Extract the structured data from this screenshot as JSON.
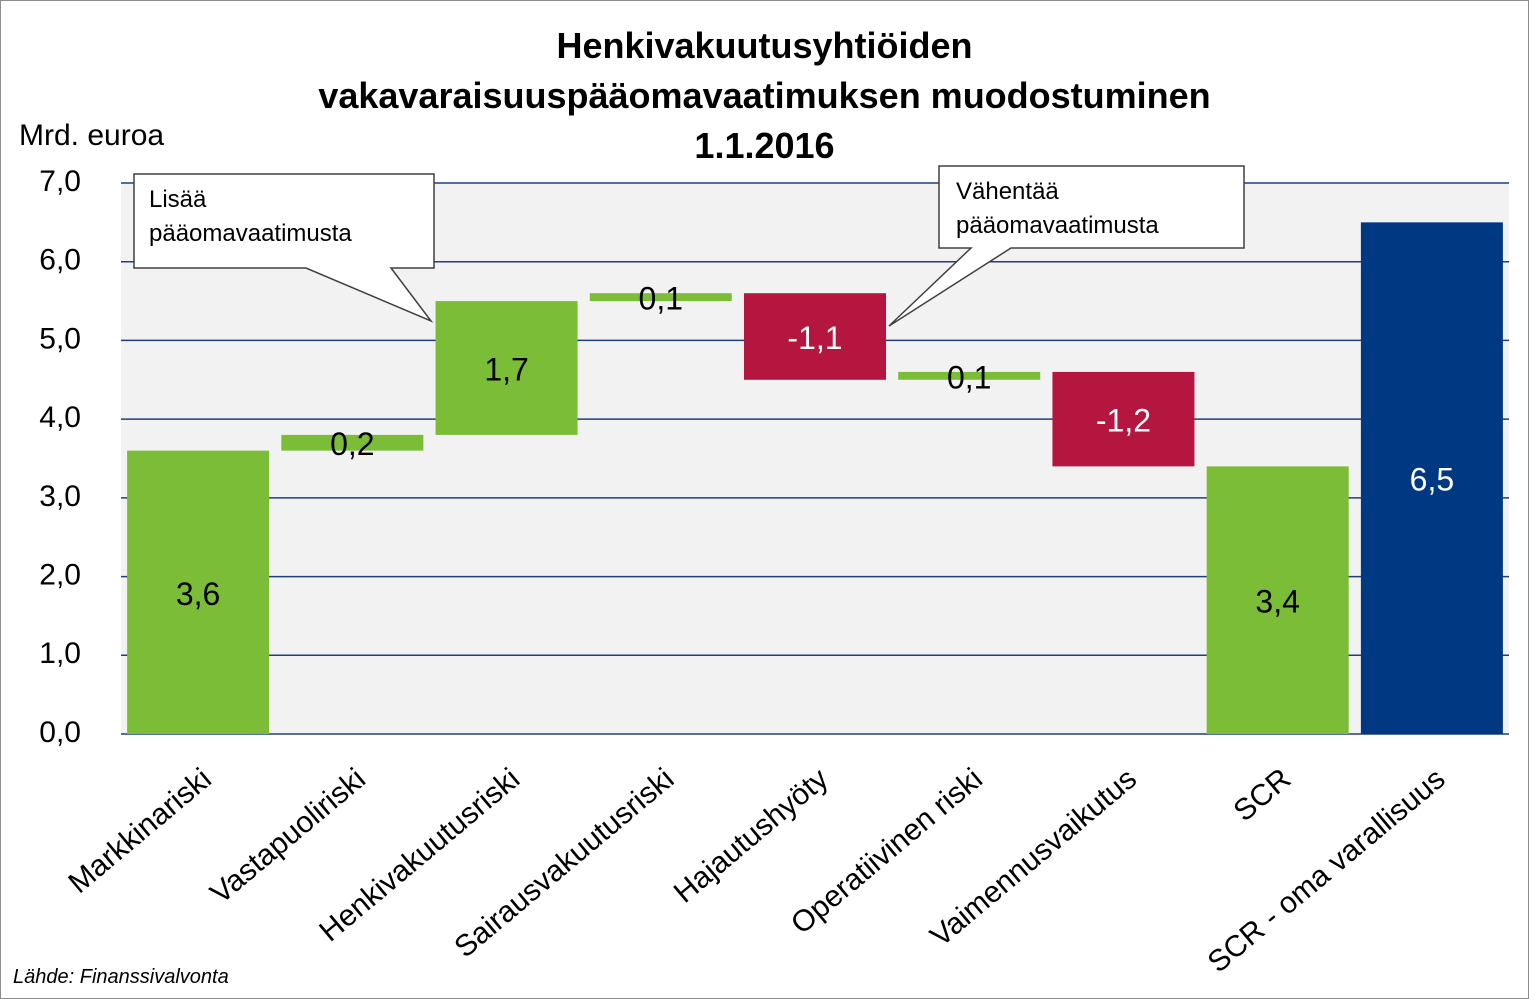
{
  "chart_data": {
    "type": "waterfall",
    "title": "Henkivakuutusyhtiöiden\nvakavaraisuuspääomavaatimuksen muodostuminen\n1.1.2016",
    "y_label": "Mrd. euroa",
    "categories": [
      "Markkinariski",
      "Vastapuoliriski",
      "Henkivakuutusriski",
      "Sairausvakuutusriski",
      "Hajautushyöty",
      "Operatiivinen riski",
      "Vaimennusvaikutus",
      "SCR",
      "SCR - oma varallisuus"
    ],
    "measures": [
      "relative",
      "relative",
      "relative",
      "relative",
      "relative",
      "relative",
      "relative",
      "total",
      "total"
    ],
    "values": [
      3.6,
      0.2,
      1.7,
      0.1,
      -1.1,
      0.1,
      -1.2,
      3.4,
      6.5
    ],
    "value_labels": [
      "3,6",
      "0,2",
      "1,7",
      "0,1",
      "-1,1",
      "0,1",
      "-1,2",
      "3,4",
      "6,5"
    ],
    "colors": [
      "#7bbd37",
      "#7bbd37",
      "#7bbd37",
      "#7bbd37",
      "#b5163f",
      "#7bbd37",
      "#b5163f",
      "#7bbd37",
      "#003882"
    ],
    "label_colors": [
      "#000000",
      "#000000",
      "#000000",
      "#000000",
      "#ffffff",
      "#000000",
      "#ffffff",
      "#000000",
      "#ffffff"
    ],
    "ylim": [
      0,
      7
    ],
    "yticks": [
      {
        "value": 0,
        "label": "0,0"
      },
      {
        "value": 1,
        "label": "1,0"
      },
      {
        "value": 2,
        "label": "2,0"
      },
      {
        "value": 3,
        "label": "3,0"
      },
      {
        "value": 4,
        "label": "4,0"
      },
      {
        "value": 5,
        "label": "5,0"
      },
      {
        "value": 6,
        "label": "6,0"
      },
      {
        "value": 7,
        "label": "7,0"
      }
    ],
    "grid": true,
    "annotations": [
      "Lisää\npääomavaatimusta",
      "Vähentää\npääomavaatimusta"
    ],
    "source": "Lähde: Finanssivalvonta"
  }
}
